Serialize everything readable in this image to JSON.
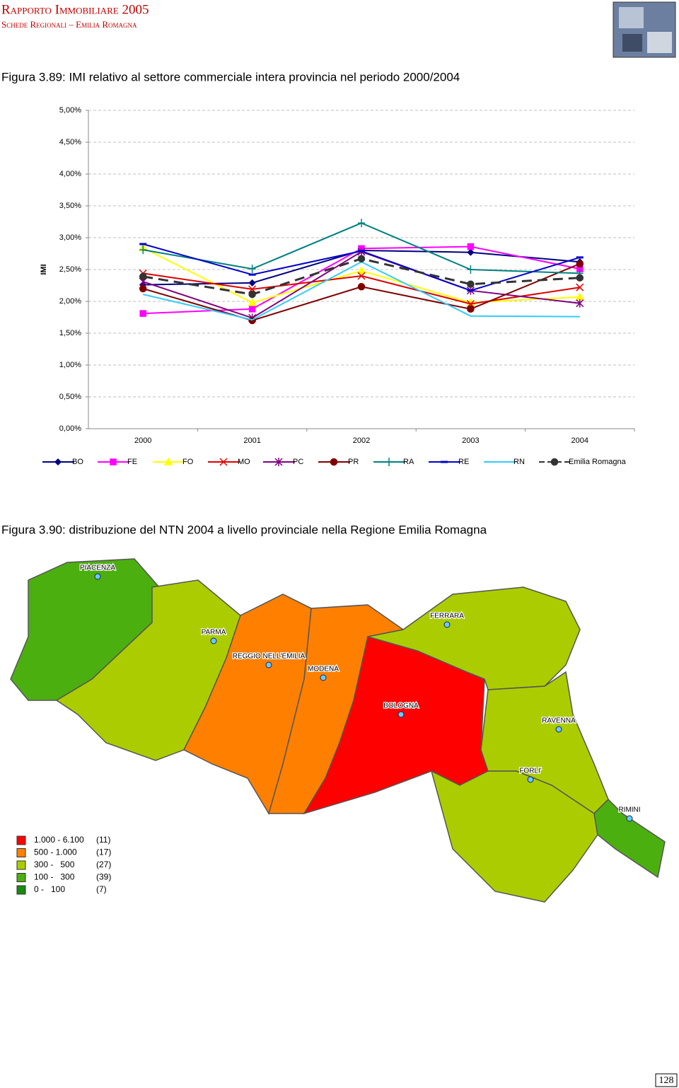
{
  "header": {
    "title": "Rapporto Immobiliare 2005",
    "subtitle": "Schede Regionali – Emilia Romagna"
  },
  "chart_data": {
    "type": "line",
    "title": "Figura 3.89: IMI relativo al settore commerciale intera provincia nel periodo 2000/2004",
    "y_label": "IMI",
    "categories": [
      "2000",
      "2001",
      "2002",
      "2003",
      "2004"
    ],
    "ylim": [
      0,
      5
    ],
    "yticks": [
      {
        "value": 0,
        "label": "0,00%"
      },
      {
        "value": 0.5,
        "label": "0,50%"
      },
      {
        "value": 1,
        "label": "1,00%"
      },
      {
        "value": 1.5,
        "label": "1,50%"
      },
      {
        "value": 2,
        "label": "2,00%"
      },
      {
        "value": 2.5,
        "label": "2,50%"
      },
      {
        "value": 3,
        "label": "3,00%"
      },
      {
        "value": 3.5,
        "label": "3,50%"
      },
      {
        "value": 4,
        "label": "4,00%"
      },
      {
        "value": 4.5,
        "label": "4,50%"
      },
      {
        "value": 5,
        "label": "5,00%"
      }
    ],
    "grid": true,
    "series": [
      {
        "name": "BO",
        "color": "#000080",
        "marker": "diamond",
        "values": [
          2.26,
          2.29,
          2.8,
          2.77,
          2.62
        ]
      },
      {
        "name": "FE",
        "color": "#ff00ff",
        "marker": "square",
        "values": [
          1.81,
          1.88,
          2.83,
          2.86,
          2.51
        ]
      },
      {
        "name": "FO",
        "color": "#ffff00",
        "marker": "triangle",
        "values": [
          2.84,
          1.98,
          2.48,
          1.98,
          2.07
        ]
      },
      {
        "name": "MO",
        "color": "#e00000",
        "marker": "x",
        "values": [
          2.44,
          2.19,
          2.4,
          1.96,
          2.22
        ]
      },
      {
        "name": "PC",
        "color": "#800080",
        "marker": "star",
        "values": [
          2.31,
          1.74,
          2.78,
          2.17,
          1.97
        ]
      },
      {
        "name": "PR",
        "color": "#800000",
        "marker": "circle",
        "values": [
          2.2,
          1.7,
          2.23,
          1.88,
          2.59
        ]
      },
      {
        "name": "RA",
        "color": "#008080",
        "marker": "plus",
        "values": [
          2.81,
          2.51,
          3.23,
          2.5,
          2.44
        ]
      },
      {
        "name": "RE",
        "color": "#0000cc",
        "marker": "dash",
        "values": [
          2.9,
          2.42,
          2.79,
          2.17,
          2.69
        ]
      },
      {
        "name": "RN",
        "color": "#33ccff",
        "marker": "none",
        "values": [
          2.11,
          1.71,
          2.62,
          1.77,
          1.76
        ]
      },
      {
        "name": "Emilia Romagna",
        "color": "#333333",
        "marker": "circle",
        "dashed": true,
        "values": [
          2.39,
          2.11,
          2.67,
          2.27,
          2.37
        ]
      }
    ]
  },
  "map_figure": {
    "caption": "Figura 3.90: distribuzione del NTN 2004 a livello provinciale nella Regione Emilia Romagna",
    "cities": [
      "PIACENZA",
      "PARMA",
      "REGGIO NELL'EMILIA",
      "MODENA",
      "BOLOGNA",
      "FERRARA",
      "RAVENNA",
      "FORLI'",
      "RIMINI"
    ],
    "legend": [
      {
        "range": "1.000 - 6.100",
        "count": "(11)"
      },
      {
        "range": "500 - 1.000",
        "count": "(17)"
      },
      {
        "range": "300 -   500",
        "count": "(27)"
      },
      {
        "range": "100 -   300",
        "count": "(39)"
      },
      {
        "range": "0 -   100",
        "count": "(7)"
      }
    ]
  },
  "page_number": "128"
}
